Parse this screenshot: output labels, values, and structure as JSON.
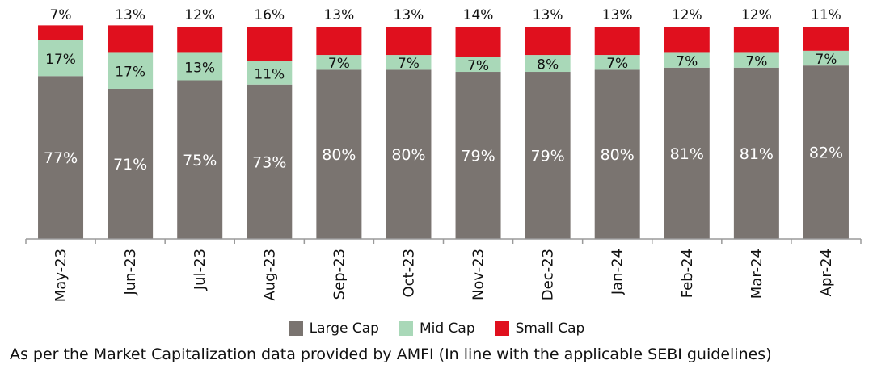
{
  "chart_data": {
    "type": "bar",
    "stacked": true,
    "categories": [
      "May-23",
      "Jun-23",
      "Jul-23",
      "Aug-23",
      "Sep-23",
      "Oct-23",
      "Nov-23",
      "Dec-23",
      "Jan-24",
      "Feb-24",
      "Mar-24",
      "Apr-24"
    ],
    "series": [
      {
        "name": "Large Cap",
        "color": "#7a7470",
        "values": [
          77,
          71,
          75,
          73,
          80,
          80,
          79,
          79,
          80,
          81,
          81,
          82
        ],
        "labels": [
          "77%",
          "71%",
          "75%",
          "73%",
          "80%",
          "80%",
          "79%",
          "79%",
          "80%",
          "81%",
          "81%",
          "82%"
        ]
      },
      {
        "name": "Mid Cap",
        "color": "#a9d8b8",
        "values": [
          17,
          17,
          13,
          11,
          7,
          7,
          7,
          8,
          7,
          7,
          7,
          7
        ],
        "labels": [
          "17%",
          "17%",
          "13%",
          "11%",
          "7%",
          "7%",
          "7%",
          "8%",
          "7%",
          "7%",
          "7%",
          "7%"
        ]
      },
      {
        "name": "Small Cap",
        "color": "#e0101e",
        "values": [
          7,
          13,
          12,
          16,
          13,
          13,
          14,
          13,
          13,
          12,
          12,
          11
        ],
        "labels": [
          "7%",
          "13%",
          "12%",
          "16%",
          "13%",
          "13%",
          "14%",
          "13%",
          "13%",
          "12%",
          "12%",
          "11%"
        ]
      }
    ],
    "ylim": [
      0,
      100
    ],
    "legend_position": "bottom",
    "grid": false
  },
  "footnote": "As per the Market Capitalization data provided by AMFI (In line with the applicable SEBI guidelines)"
}
